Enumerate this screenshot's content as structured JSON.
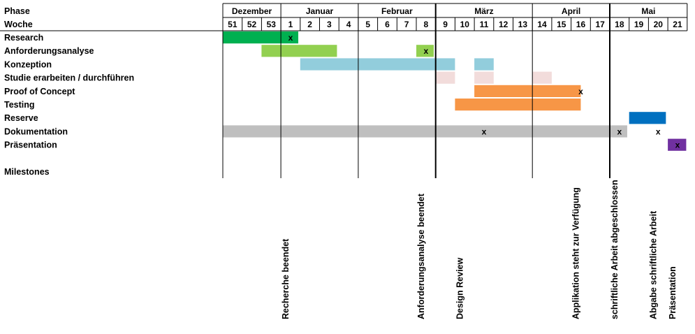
{
  "header": {
    "phase_label": "Phase",
    "week_label": "Woche",
    "milestones_label": "Milestones"
  },
  "weeks": [
    "51",
    "52",
    "53",
    "1",
    "2",
    "3",
    "4",
    "5",
    "6",
    "7",
    "8",
    "9",
    "10",
    "11",
    "12",
    "13",
    "14",
    "15",
    "16",
    "17",
    "18",
    "19",
    "20",
    "21"
  ],
  "months": [
    {
      "name": "Dezember",
      "from": 0,
      "to": 2
    },
    {
      "name": "Januar",
      "from": 3,
      "to": 6
    },
    {
      "name": "Februar",
      "from": 7,
      "to": 10
    },
    {
      "name": "März",
      "from": 11,
      "to": 15
    },
    {
      "name": "April",
      "from": 16,
      "to": 19
    },
    {
      "name": "Mai",
      "from": 20,
      "to": 23
    }
  ],
  "phases": [
    {
      "name": "Research",
      "color": "#00b050",
      "bars": [
        [
          0,
          3.9
        ]
      ],
      "marks": [
        3.5
      ]
    },
    {
      "name": "Anforderungsanalyse",
      "color": "#92d050",
      "bars": [
        [
          2,
          5.9
        ],
        [
          10,
          10.9
        ]
      ],
      "marks": [
        10.5
      ]
    },
    {
      "name": "Konzeption",
      "color": "#92cddc",
      "bars": [
        [
          4,
          12.0
        ],
        [
          13,
          14.0
        ]
      ],
      "marks": []
    },
    {
      "name": "Studie erarbeiten / durchführen",
      "color": "#f2dcdb",
      "bars": [
        [
          11,
          12.0
        ],
        [
          13,
          14.0
        ],
        [
          16,
          17.0
        ]
      ],
      "marks": []
    },
    {
      "name": "Proof of Concept",
      "color": "#f79646",
      "bars": [
        [
          13,
          18.5
        ]
      ],
      "marks": [
        18.5
      ]
    },
    {
      "name": "Testing",
      "color": "#f79646",
      "bars": [
        [
          12,
          18.5
        ]
      ],
      "marks": []
    },
    {
      "name": "Reserve",
      "color": "#0070c0",
      "bars": [
        [
          21,
          22.9
        ]
      ],
      "marks": []
    },
    {
      "name": "Dokumentation",
      "color": "#bfbfbf",
      "bars": [
        [
          0,
          20.9
        ]
      ],
      "marks": [
        13.5,
        20.5,
        22.5
      ]
    },
    {
      "name": "Präsentation",
      "color": "#7030a0",
      "bars": [
        [
          23,
          23.95
        ]
      ],
      "marks": [
        23.5
      ]
    }
  ],
  "milestones": [
    {
      "label": "Recherche beendet",
      "week": 3.5
    },
    {
      "label": "Anforderungsanalyse beendet",
      "week": 10.5
    },
    {
      "label": "Design Review",
      "week": 12.5
    },
    {
      "label": "Applikation steht zur Verfügung",
      "week": 18.5
    },
    {
      "label": "schriftliche Arbeit abgeschlossen",
      "week": 20.5
    },
    {
      "label": "Abgabe schriftliche Arbeit",
      "week": 22.5
    },
    {
      "label": "Präsentation",
      "week": 23.5
    }
  ],
  "mark_symbol": "x"
}
